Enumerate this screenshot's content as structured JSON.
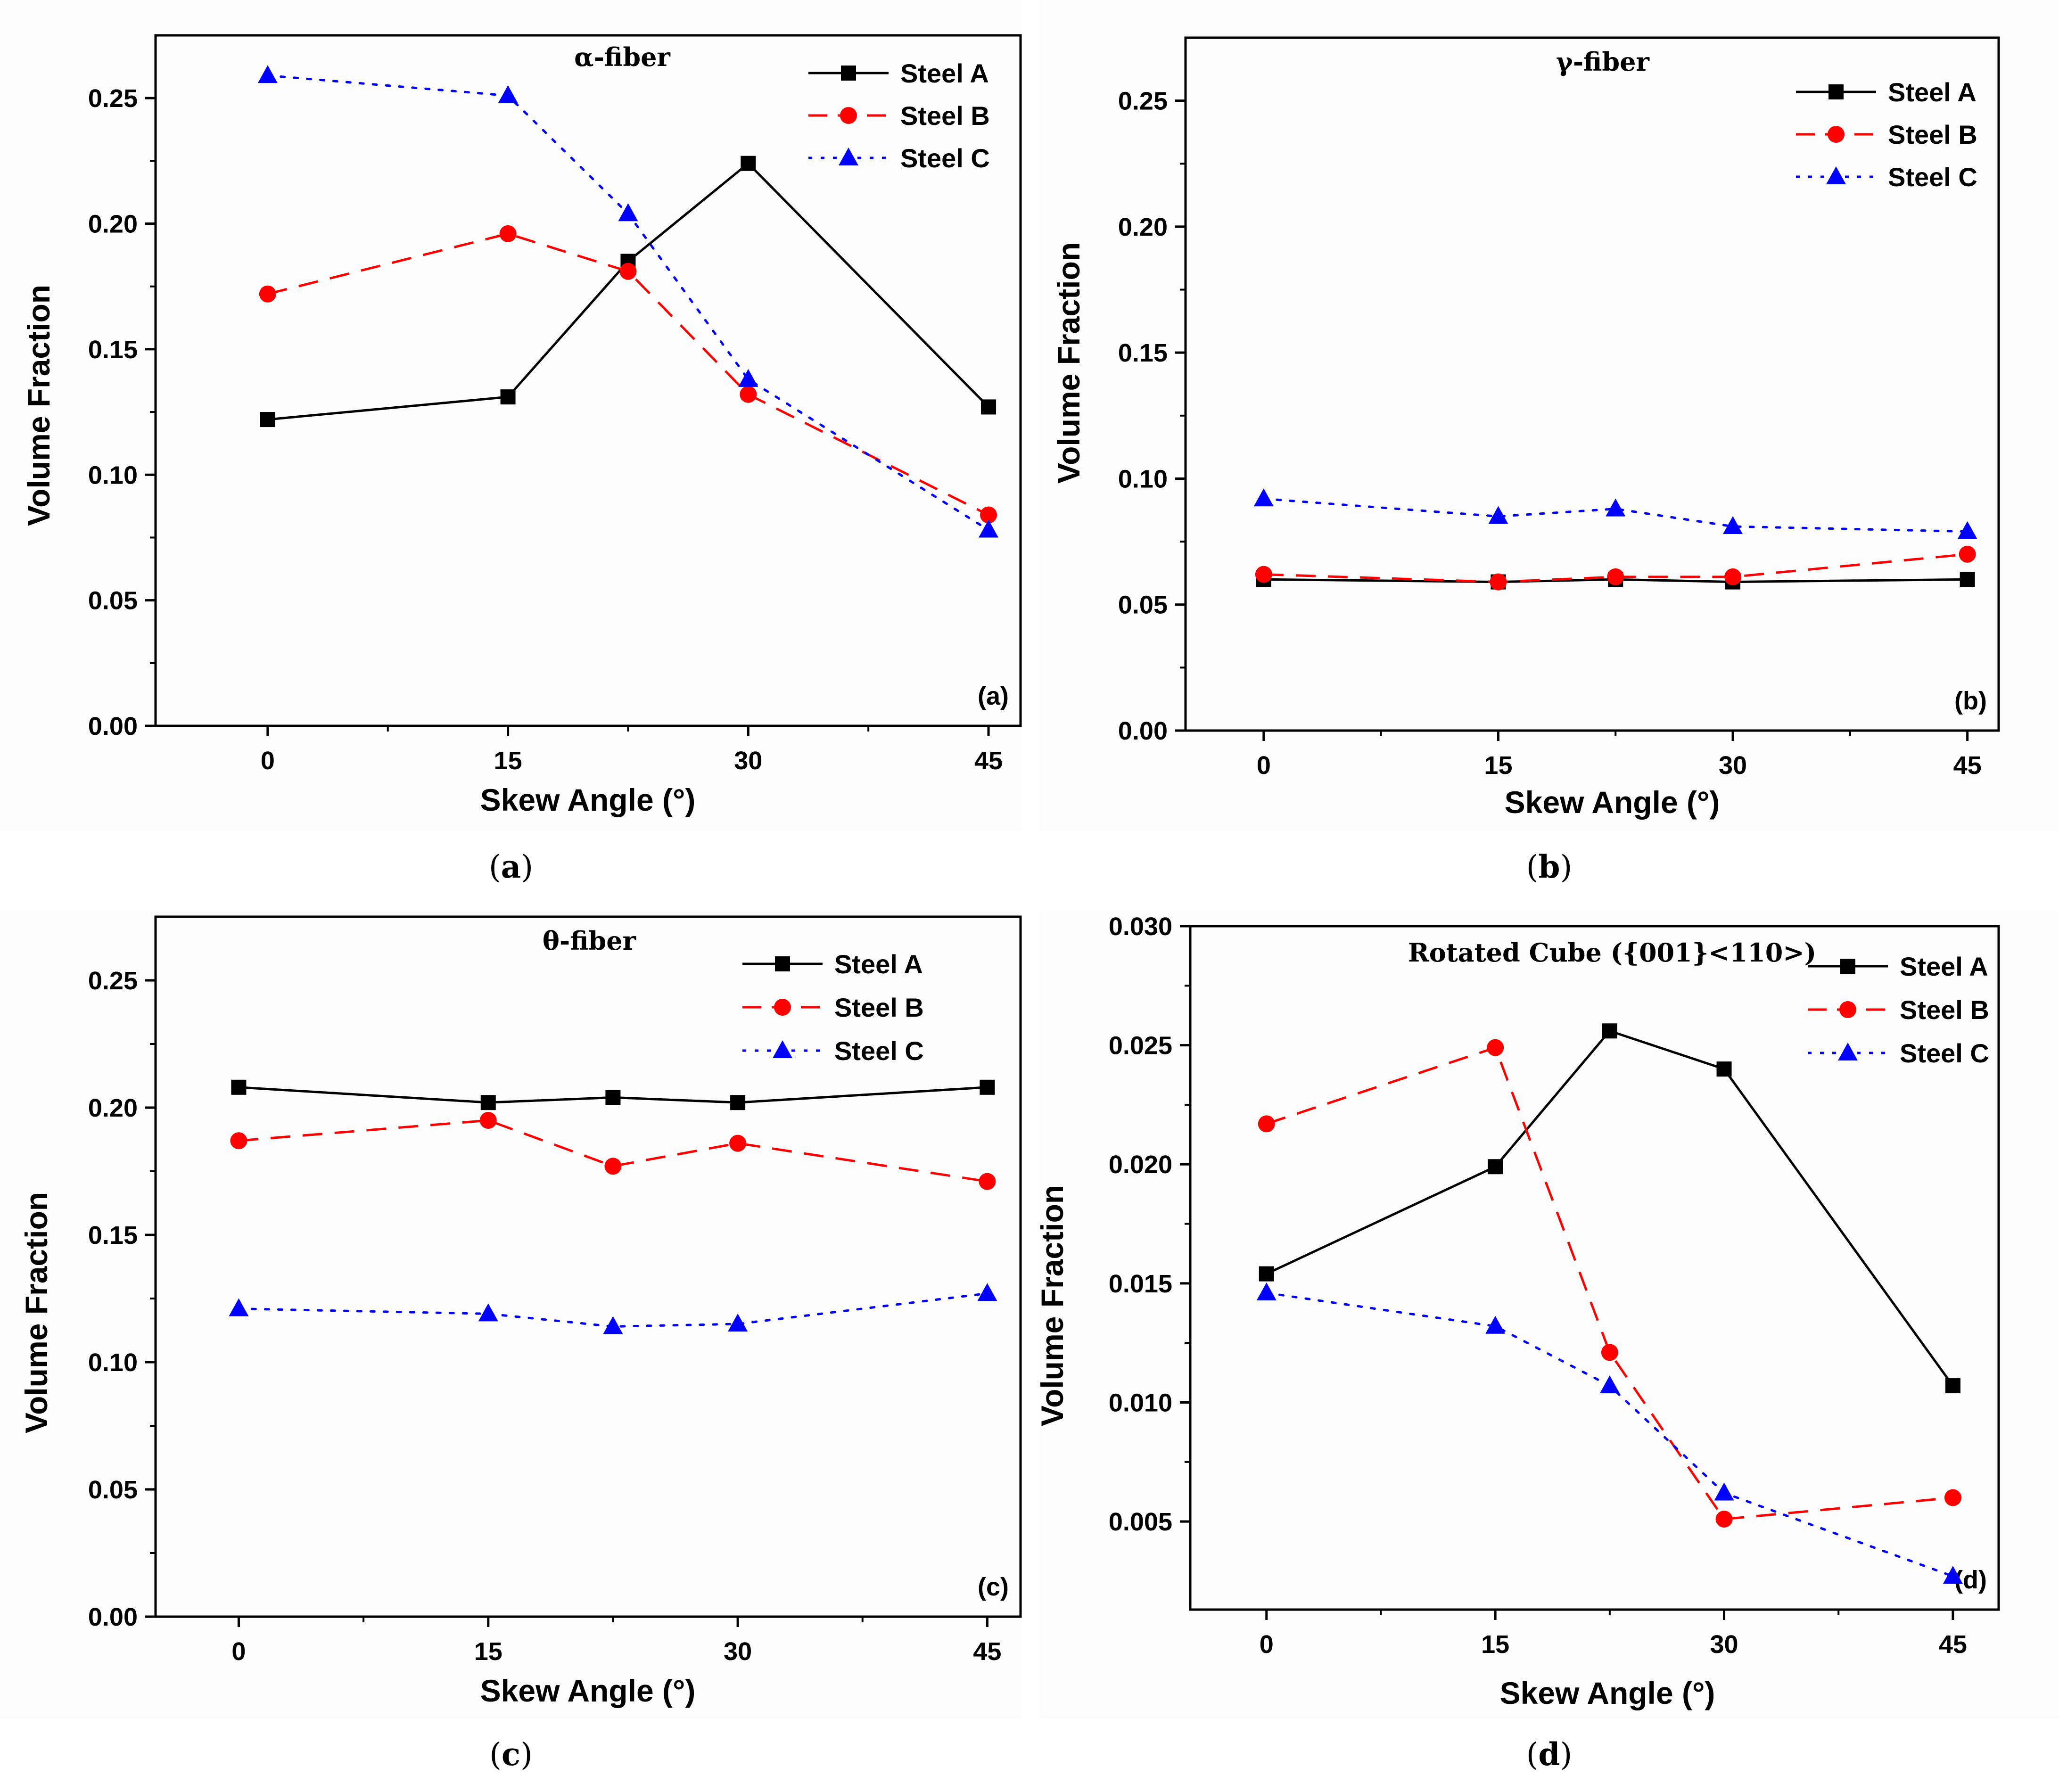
{
  "chart_data": [
    {
      "type": "line",
      "panel": "(a)",
      "caption_letter": "a",
      "title": "α-fiber",
      "xlabel": "Skew Angle (°)",
      "ylabel": "Volume Fraction",
      "xlim": [
        -7,
        47
      ],
      "ylim": [
        0,
        0.275
      ],
      "x": [
        0,
        15,
        22.5,
        30,
        45
      ],
      "xticks": [
        0,
        15,
        30,
        45
      ],
      "xtick_labels": [
        "0",
        "15",
        "30",
        "45"
      ],
      "yticks": [
        0,
        0.05,
        0.1,
        0.15,
        0.2,
        0.25
      ],
      "ytick_labels": [
        "0.00",
        "0.05",
        "0.10",
        "0.15",
        "0.20",
        "0.25"
      ],
      "series": [
        {
          "name": "Steel A",
          "values": [
            0.122,
            0.131,
            0.185,
            0.224,
            0.127
          ]
        },
        {
          "name": "Steel B",
          "values": [
            0.172,
            0.196,
            0.181,
            0.132,
            0.084
          ]
        },
        {
          "name": "Steel C",
          "values": [
            0.259,
            0.251,
            0.204,
            0.138,
            0.078
          ]
        }
      ]
    },
    {
      "type": "line",
      "panel": "(b)",
      "caption_letter": "b",
      "title": "γ-fiber",
      "xlabel": "Skew Angle (°)",
      "ylabel": "Volume Fraction",
      "xlim": [
        -5,
        47
      ],
      "ylim": [
        0,
        0.275
      ],
      "x": [
        0,
        15,
        22.5,
        30,
        45
      ],
      "xticks": [
        0,
        15,
        30,
        45
      ],
      "xtick_labels": [
        "0",
        "15",
        "30",
        "45"
      ],
      "yticks": [
        0,
        0.05,
        0.1,
        0.15,
        0.2,
        0.25
      ],
      "ytick_labels": [
        "0.00",
        "0.05",
        "0.10",
        "0.15",
        "0.20",
        "0.25"
      ],
      "series": [
        {
          "name": "Steel A",
          "values": [
            0.06,
            0.059,
            0.06,
            0.059,
            0.06
          ]
        },
        {
          "name": "Steel B",
          "values": [
            0.062,
            0.059,
            0.061,
            0.061,
            0.07
          ]
        },
        {
          "name": "Steel C",
          "values": [
            0.092,
            0.085,
            0.088,
            0.081,
            0.079
          ]
        }
      ]
    },
    {
      "type": "line",
      "panel": "(c)",
      "caption_letter": "c",
      "title": "θ-fiber",
      "xlabel": "Skew Angle (°)",
      "ylabel": "Volume Fraction",
      "xlim": [
        -5,
        47
      ],
      "ylim": [
        0,
        0.275
      ],
      "x": [
        0,
        15,
        22.5,
        30,
        45
      ],
      "xticks": [
        0,
        15,
        30,
        45
      ],
      "xtick_labels": [
        "0",
        "15",
        "30",
        "45"
      ],
      "yticks": [
        0,
        0.05,
        0.1,
        0.15,
        0.2,
        0.25
      ],
      "ytick_labels": [
        "0.00",
        "0.05",
        "0.10",
        "0.15",
        "0.20",
        "0.25"
      ],
      "series": [
        {
          "name": "Steel A",
          "values": [
            0.208,
            0.202,
            0.204,
            0.202,
            0.208
          ]
        },
        {
          "name": "Steel B",
          "values": [
            0.187,
            0.195,
            0.177,
            0.186,
            0.171
          ]
        },
        {
          "name": "Steel C",
          "values": [
            0.121,
            0.119,
            0.114,
            0.115,
            0.127
          ]
        }
      ]
    },
    {
      "type": "line",
      "panel": "(d)",
      "caption_letter": "d",
      "title": "Rotated Cube ({001}<110>)",
      "xlabel": "Skew Angle (°)",
      "ylabel": "Volume Fraction",
      "xlim": [
        -5,
        48
      ],
      "ylim": [
        0.0013,
        0.03
      ],
      "x": [
        0,
        15,
        22.5,
        30,
        45
      ],
      "xticks": [
        0,
        15,
        30,
        45
      ],
      "xtick_labels": [
        "0",
        "15",
        "30",
        "45"
      ],
      "yticks": [
        0.005,
        0.01,
        0.015,
        0.02,
        0.025,
        0.03
      ],
      "ytick_labels": [
        "0.005",
        "0.010",
        "0.015",
        "0.020",
        "0.025",
        "0.030"
      ],
      "series": [
        {
          "name": "Steel A",
          "values": [
            0.0154,
            0.0199,
            0.0256,
            0.024,
            0.0107
          ]
        },
        {
          "name": "Steel B",
          "values": [
            0.0217,
            0.0249,
            0.0121,
            0.0051,
            0.006
          ]
        },
        {
          "name": "Steel C",
          "values": [
            0.0146,
            0.0132,
            0.0107,
            0.0062,
            0.0027
          ]
        }
      ]
    }
  ],
  "series_styles": [
    {
      "color": "#000000",
      "marker": "square"
    },
    {
      "color": "#ff0000",
      "marker": "circle"
    },
    {
      "color": "#0000ff",
      "marker": "triangle"
    }
  ],
  "colors": {
    "plot_bg": "#fcfcfc",
    "axis": "#000000"
  }
}
